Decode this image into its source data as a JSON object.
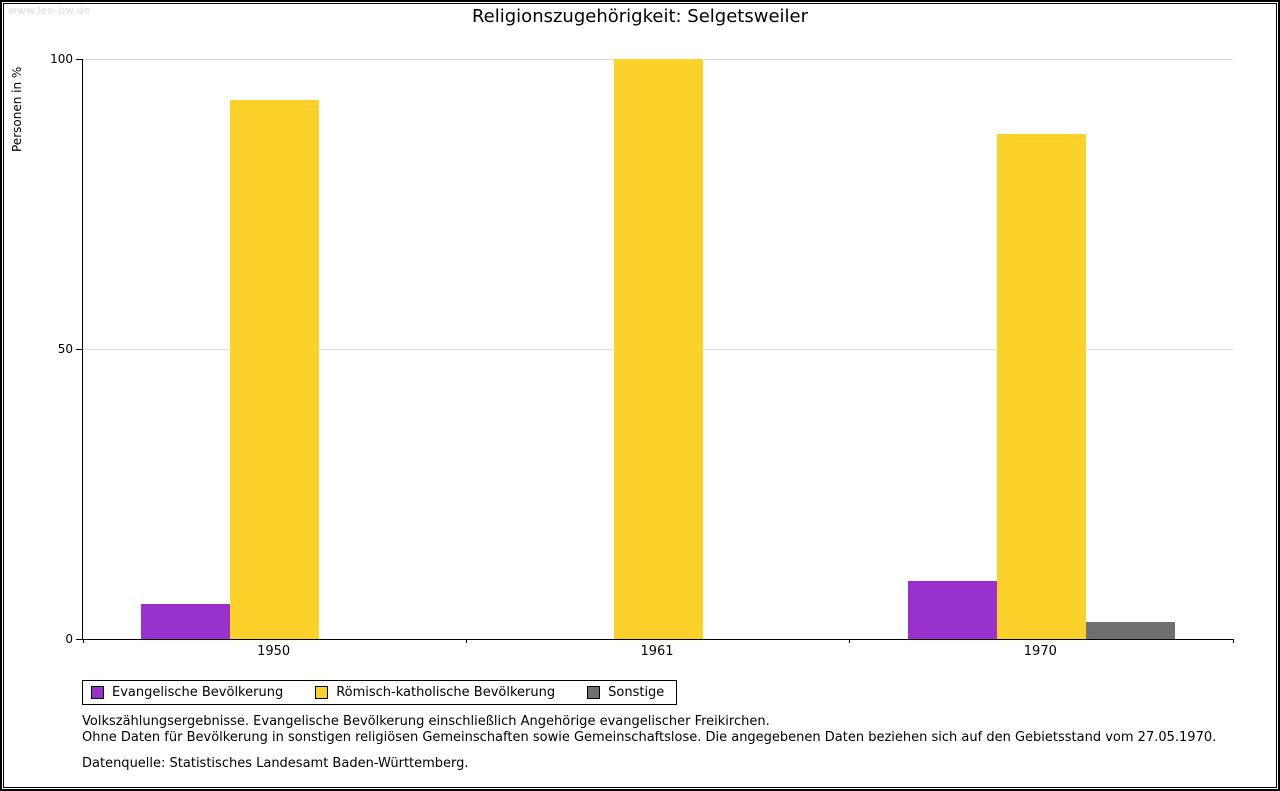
{
  "page": {
    "watermark": "www.leo-bw.de",
    "title": "Religionszugehörigkeit: Selgetsweiler"
  },
  "chart_data": {
    "type": "bar",
    "title": "Religionszugehörigkeit: Selgetsweiler",
    "ylabel": "Personen in %",
    "xlabel": "",
    "categories": [
      "1950",
      "1961",
      "1970"
    ],
    "series": [
      {
        "name": "Evangelische Bevölkerung",
        "color": "#9932cc",
        "values": [
          6,
          0,
          10
        ]
      },
      {
        "name": "Römisch-katholische Bevölkerung",
        "color": "#fcd12a",
        "values": [
          93,
          100,
          87
        ]
      },
      {
        "name": "Sonstige",
        "color": "#6f6f6f",
        "values": [
          0,
          0,
          3
        ]
      }
    ],
    "ylim": [
      0,
      100
    ],
    "yticks": [
      0,
      50,
      100
    ],
    "grid": true,
    "legend_position": "bottom"
  },
  "footnotes": {
    "line1": "Volkszählungsergebnisse. Evangelische Bevölkerung einschließlich Angehörige evangelischer Freikirchen.",
    "line2": "Ohne Daten für Bevölkerung in sonstigen religiösen Gemeinschaften sowie Gemeinschaftslose. Die angegebenen Daten beziehen sich auf den Gebietsstand vom 27.05.1970.",
    "source": "Datenquelle: Statistisches Landesamt Baden-Württemberg."
  }
}
